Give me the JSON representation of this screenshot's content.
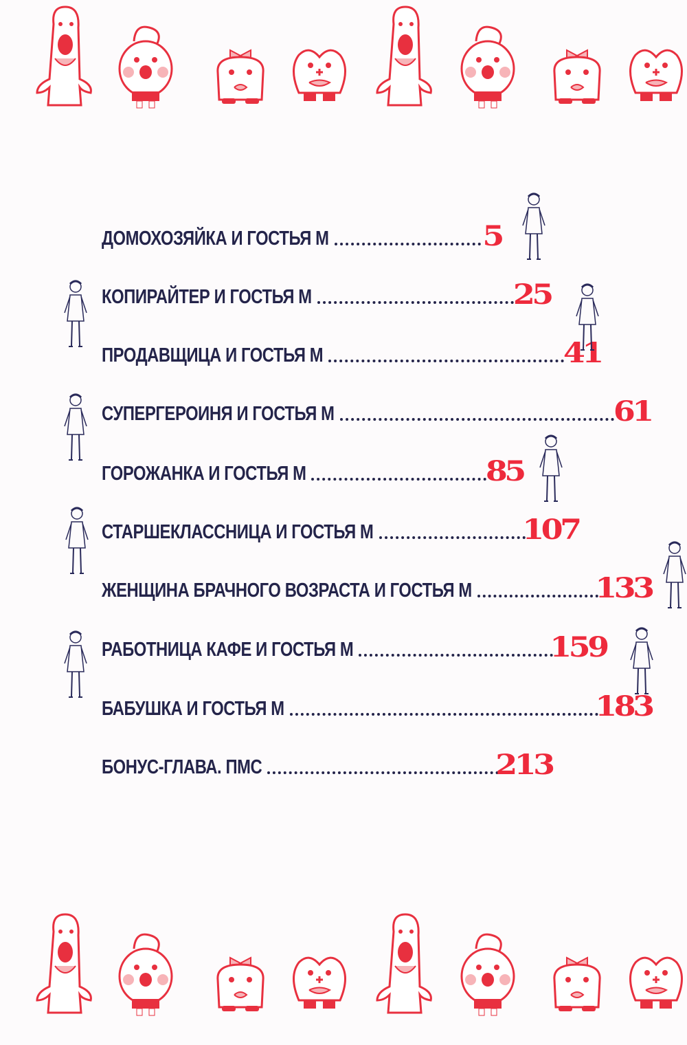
{
  "toc": {
    "entries": [
      {
        "title": "ДОМОХОЗЯЙКА И ГОСТЬЯ М",
        "page": "5"
      },
      {
        "title": "КОПИРАЙТЕР И ГОСТЬЯ М",
        "page": "25"
      },
      {
        "title": "ПРОДАВЩИЦА И ГОСТЬЯ М",
        "page": "41"
      },
      {
        "title": "СУПЕРГЕРОИНЯ И ГОСТЬЯ М",
        "page": "61"
      },
      {
        "title": "ГОРОЖАНКА И ГОСТЬЯ М",
        "page": "85"
      },
      {
        "title": "СТАРШЕКЛАССНИЦА И ГОСТЬЯ М",
        "page": "107"
      },
      {
        "title": "ЖЕНЩИНА БРАЧНОГО ВОЗРАСТА И ГОСТЬЯ М",
        "page": "133"
      },
      {
        "title": "РАБОТНИЦА КАФЕ И ГОСТЬЯ М",
        "page": "159"
      },
      {
        "title": "БАБУШКА И ГОСТЬЯ М",
        "page": "183"
      },
      {
        "title": "БОНУС-ГЛАВА. ПМС",
        "page": "213"
      }
    ]
  },
  "colors": {
    "title_text": "#24244a",
    "page_number": "#ee2a3c",
    "mascot_outline": "#e8303f",
    "figure_ink": "#2a2a5a"
  },
  "icons": [
    "ghost-mascot",
    "hat-mascot",
    "bow-mascot",
    "heart-mascot"
  ]
}
